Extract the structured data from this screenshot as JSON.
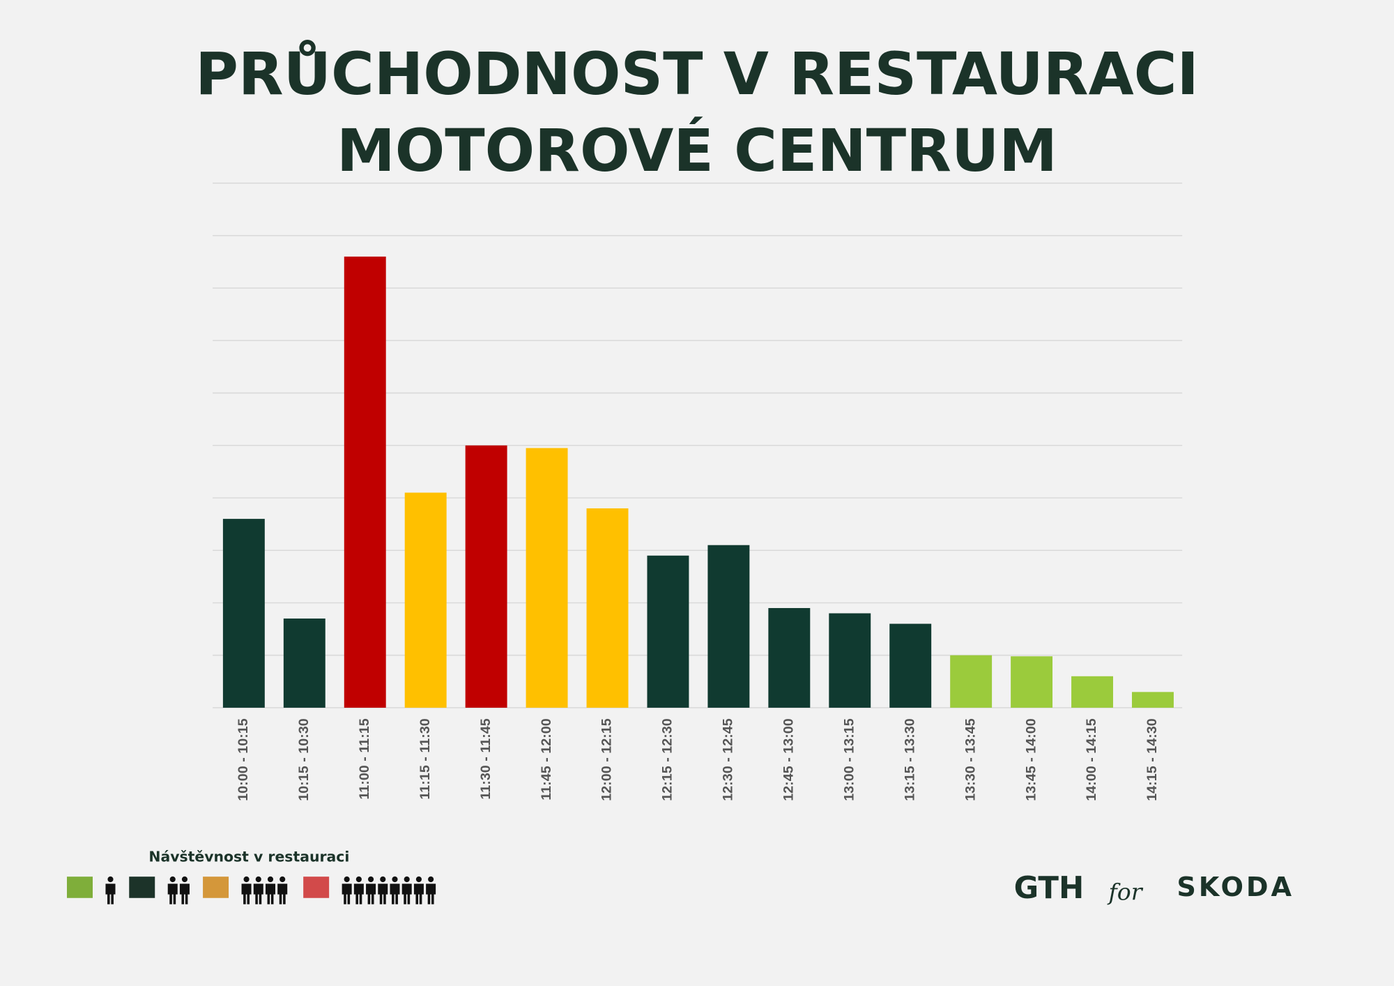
{
  "chart_data": {
    "type": "bar",
    "title": [
      "PRŮCHODNOST V RESTAURACI",
      "MOTOROVÉ CENTRUM"
    ],
    "categories": [
      "10:00 - 10:15",
      "10:15 - 10:30",
      "11:00 - 11:15",
      "11:15 - 11:30",
      "11:30 - 11:45",
      "11:45 - 12:00",
      "12:00 - 12:15",
      "12:15 - 12:30",
      "12:30 - 12:45",
      "12:45 - 13:00",
      "13:00 - 13:15",
      "13:15 - 13:30",
      "13:30 - 13:45",
      "13:45 - 14:00",
      "14:00 - 14:15",
      "14:15 - 14:30"
    ],
    "values": [
      3.6,
      1.7,
      8.6,
      4.1,
      5.0,
      4.95,
      3.8,
      2.9,
      3.1,
      1.9,
      1.8,
      1.6,
      1.0,
      0.98,
      0.6,
      0.3
    ],
    "colors": [
      "#103a30",
      "#103a30",
      "#c00000",
      "#ffc000",
      "#c00000",
      "#ffc000",
      "#ffc000",
      "#103a30",
      "#103a30",
      "#103a30",
      "#103a30",
      "#103a30",
      "#9bcb3c",
      "#9bcb3c",
      "#9bcb3c",
      "#9bcb3c"
    ],
    "ylim": [
      0,
      10
    ],
    "yticks": [
      0,
      1,
      2,
      3,
      4,
      5,
      6,
      7,
      8,
      9,
      10
    ],
    "grid": true,
    "legend": {
      "title": "Návštěvnost v restauraci",
      "colors": [
        "#7fae3a",
        "#1c3329",
        "#d4973a",
        "#d24a4a"
      ]
    }
  },
  "branding": {
    "left": "GTH",
    "middle": "for",
    "right": "SKODA"
  }
}
